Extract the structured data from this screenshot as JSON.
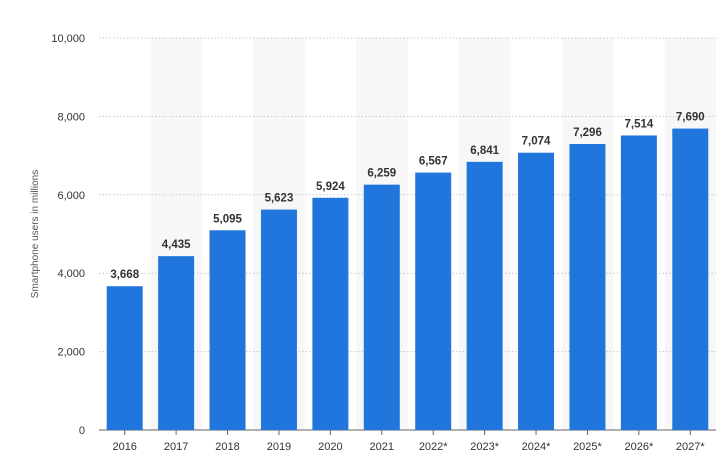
{
  "chart_data": {
    "type": "bar",
    "title": "",
    "xlabel": "",
    "ylabel": "Smartphone users in millions",
    "categories": [
      "2016",
      "2017",
      "2018",
      "2019",
      "2020",
      "2021",
      "2022*",
      "2023*",
      "2024*",
      "2025*",
      "2026*",
      "2027*"
    ],
    "values": [
      3668,
      4435,
      5095,
      5623,
      5924,
      6259,
      6567,
      6841,
      7074,
      7296,
      7514,
      7690
    ],
    "value_labels": [
      "3,668",
      "4,435",
      "5,095",
      "5,623",
      "5,924",
      "6,259",
      "6,567",
      "6,841",
      "7,074",
      "7,296",
      "7,514",
      "7,690"
    ],
    "ylim": [
      0,
      10000
    ],
    "yticks": [
      0,
      2000,
      4000,
      6000,
      8000,
      10000
    ],
    "ytick_labels": [
      "0",
      "2,000",
      "4,000",
      "6,000",
      "8,000",
      "10,000"
    ],
    "grid": true,
    "legend": "none",
    "bar_color": "#2176dd",
    "band_color": "#f7f7f7",
    "grid_color": "#c8c8c8"
  }
}
